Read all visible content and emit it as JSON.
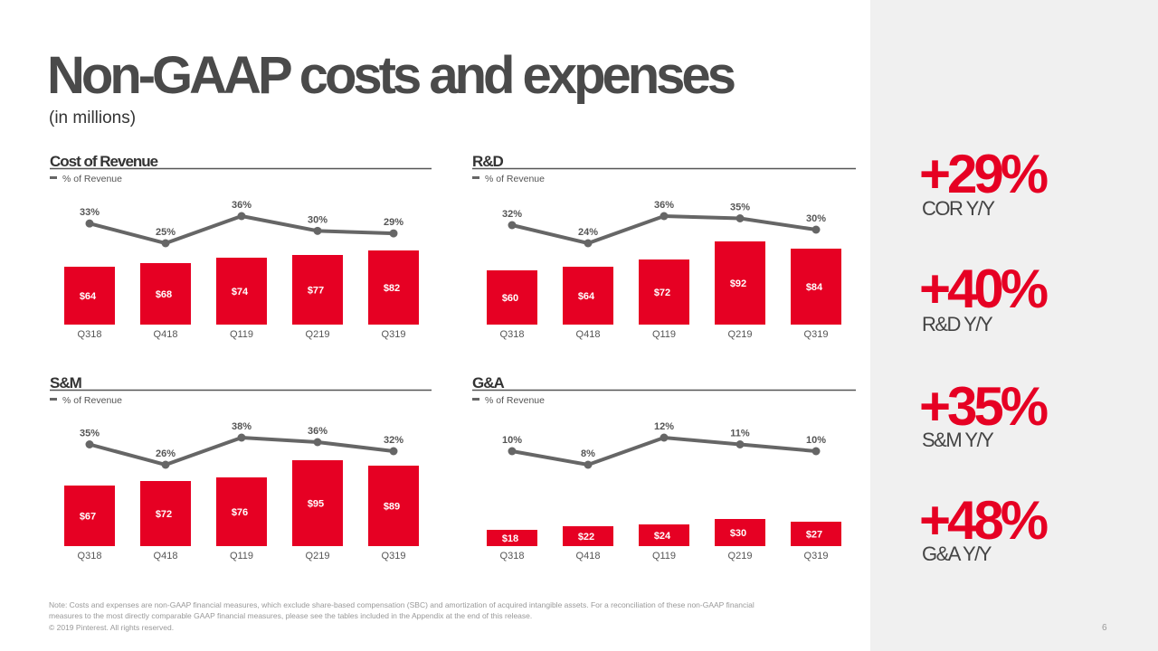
{
  "header": {
    "title": "Non-GAAP costs and expenses",
    "subtitle": "(in millions)"
  },
  "chart_data": [
    {
      "type": "bar",
      "title": "Cost of Revenue",
      "categories": [
        "Q318",
        "Q418",
        "Q119",
        "Q219",
        "Q319"
      ],
      "series": [
        {
          "color": "#e60023",
          "values": [
            64,
            68,
            74,
            77,
            82
          ],
          "value_labels": [
            "$64",
            "$68",
            "$74",
            "$77",
            "$82"
          ]
        },
        {
          "type": "line",
          "name": "% of Revenue",
          "color": "#666666",
          "values": [
            33,
            25,
            36,
            30,
            29
          ],
          "value_labels": [
            "33%",
            "25%",
            "36%",
            "30%",
            "29%"
          ]
        }
      ]
    },
    {
      "type": "bar",
      "title": "R&D",
      "categories": [
        "Q318",
        "Q418",
        "Q119",
        "Q219",
        "Q319"
      ],
      "series": [
        {
          "color": "#e60023",
          "values": [
            60,
            64,
            72,
            92,
            84
          ],
          "value_labels": [
            "$60",
            "$64",
            "$72",
            "$92",
            "$84"
          ]
        },
        {
          "type": "line",
          "name": "% of Revenue",
          "color": "#666666",
          "values": [
            32,
            24,
            36,
            35,
            30
          ],
          "value_labels": [
            "32%",
            "24%",
            "36%",
            "35%",
            "30%"
          ]
        }
      ]
    },
    {
      "type": "bar",
      "title": "S&M",
      "categories": [
        "Q318",
        "Q418",
        "Q119",
        "Q219",
        "Q319"
      ],
      "series": [
        {
          "color": "#e60023",
          "values": [
            67,
            72,
            76,
            95,
            89
          ],
          "value_labels": [
            "$67",
            "$72",
            "$76",
            "$95",
            "$89"
          ]
        },
        {
          "type": "line",
          "name": "% of Revenue",
          "color": "#666666",
          "values": [
            35,
            26,
            38,
            36,
            32
          ],
          "value_labels": [
            "35%",
            "26%",
            "38%",
            "36%",
            "32%"
          ]
        }
      ]
    },
    {
      "type": "bar",
      "title": "G&A",
      "categories": [
        "Q318",
        "Q418",
        "Q119",
        "Q219",
        "Q319"
      ],
      "series": [
        {
          "color": "#e60023",
          "values": [
            18,
            22,
            24,
            30,
            27
          ],
          "value_labels": [
            "$18",
            "$22",
            "$24",
            "$30",
            "$27"
          ]
        },
        {
          "type": "line",
          "name": "% of Revenue",
          "color": "#666666",
          "values": [
            10,
            8,
            12,
            11,
            10
          ],
          "value_labels": [
            "10%",
            "8%",
            "12%",
            "11%",
            "10%"
          ]
        }
      ]
    }
  ],
  "highlights": [
    {
      "value": "+29%",
      "label": "COR Y/Y"
    },
    {
      "value": "+40%",
      "label": "R&D Y/Y"
    },
    {
      "value": "+35%",
      "label": "S&M Y/Y"
    },
    {
      "value": "+48%",
      "label": "G&A Y/Y"
    }
  ],
  "footer": {
    "note": [
      "Note: Costs and expenses are non-GAAP financial measures, which exclude share-based compensation (SBC) and amortization of acquired intangible assets. For a reconciliation of these non-GAAP financial",
      "measures to the most directly comparable GAAP financial measures, please see the tables included in the Appendix at the end of this release."
    ],
    "copyright": "© 2019 Pinterest. All rights reserved.",
    "page": "6"
  }
}
